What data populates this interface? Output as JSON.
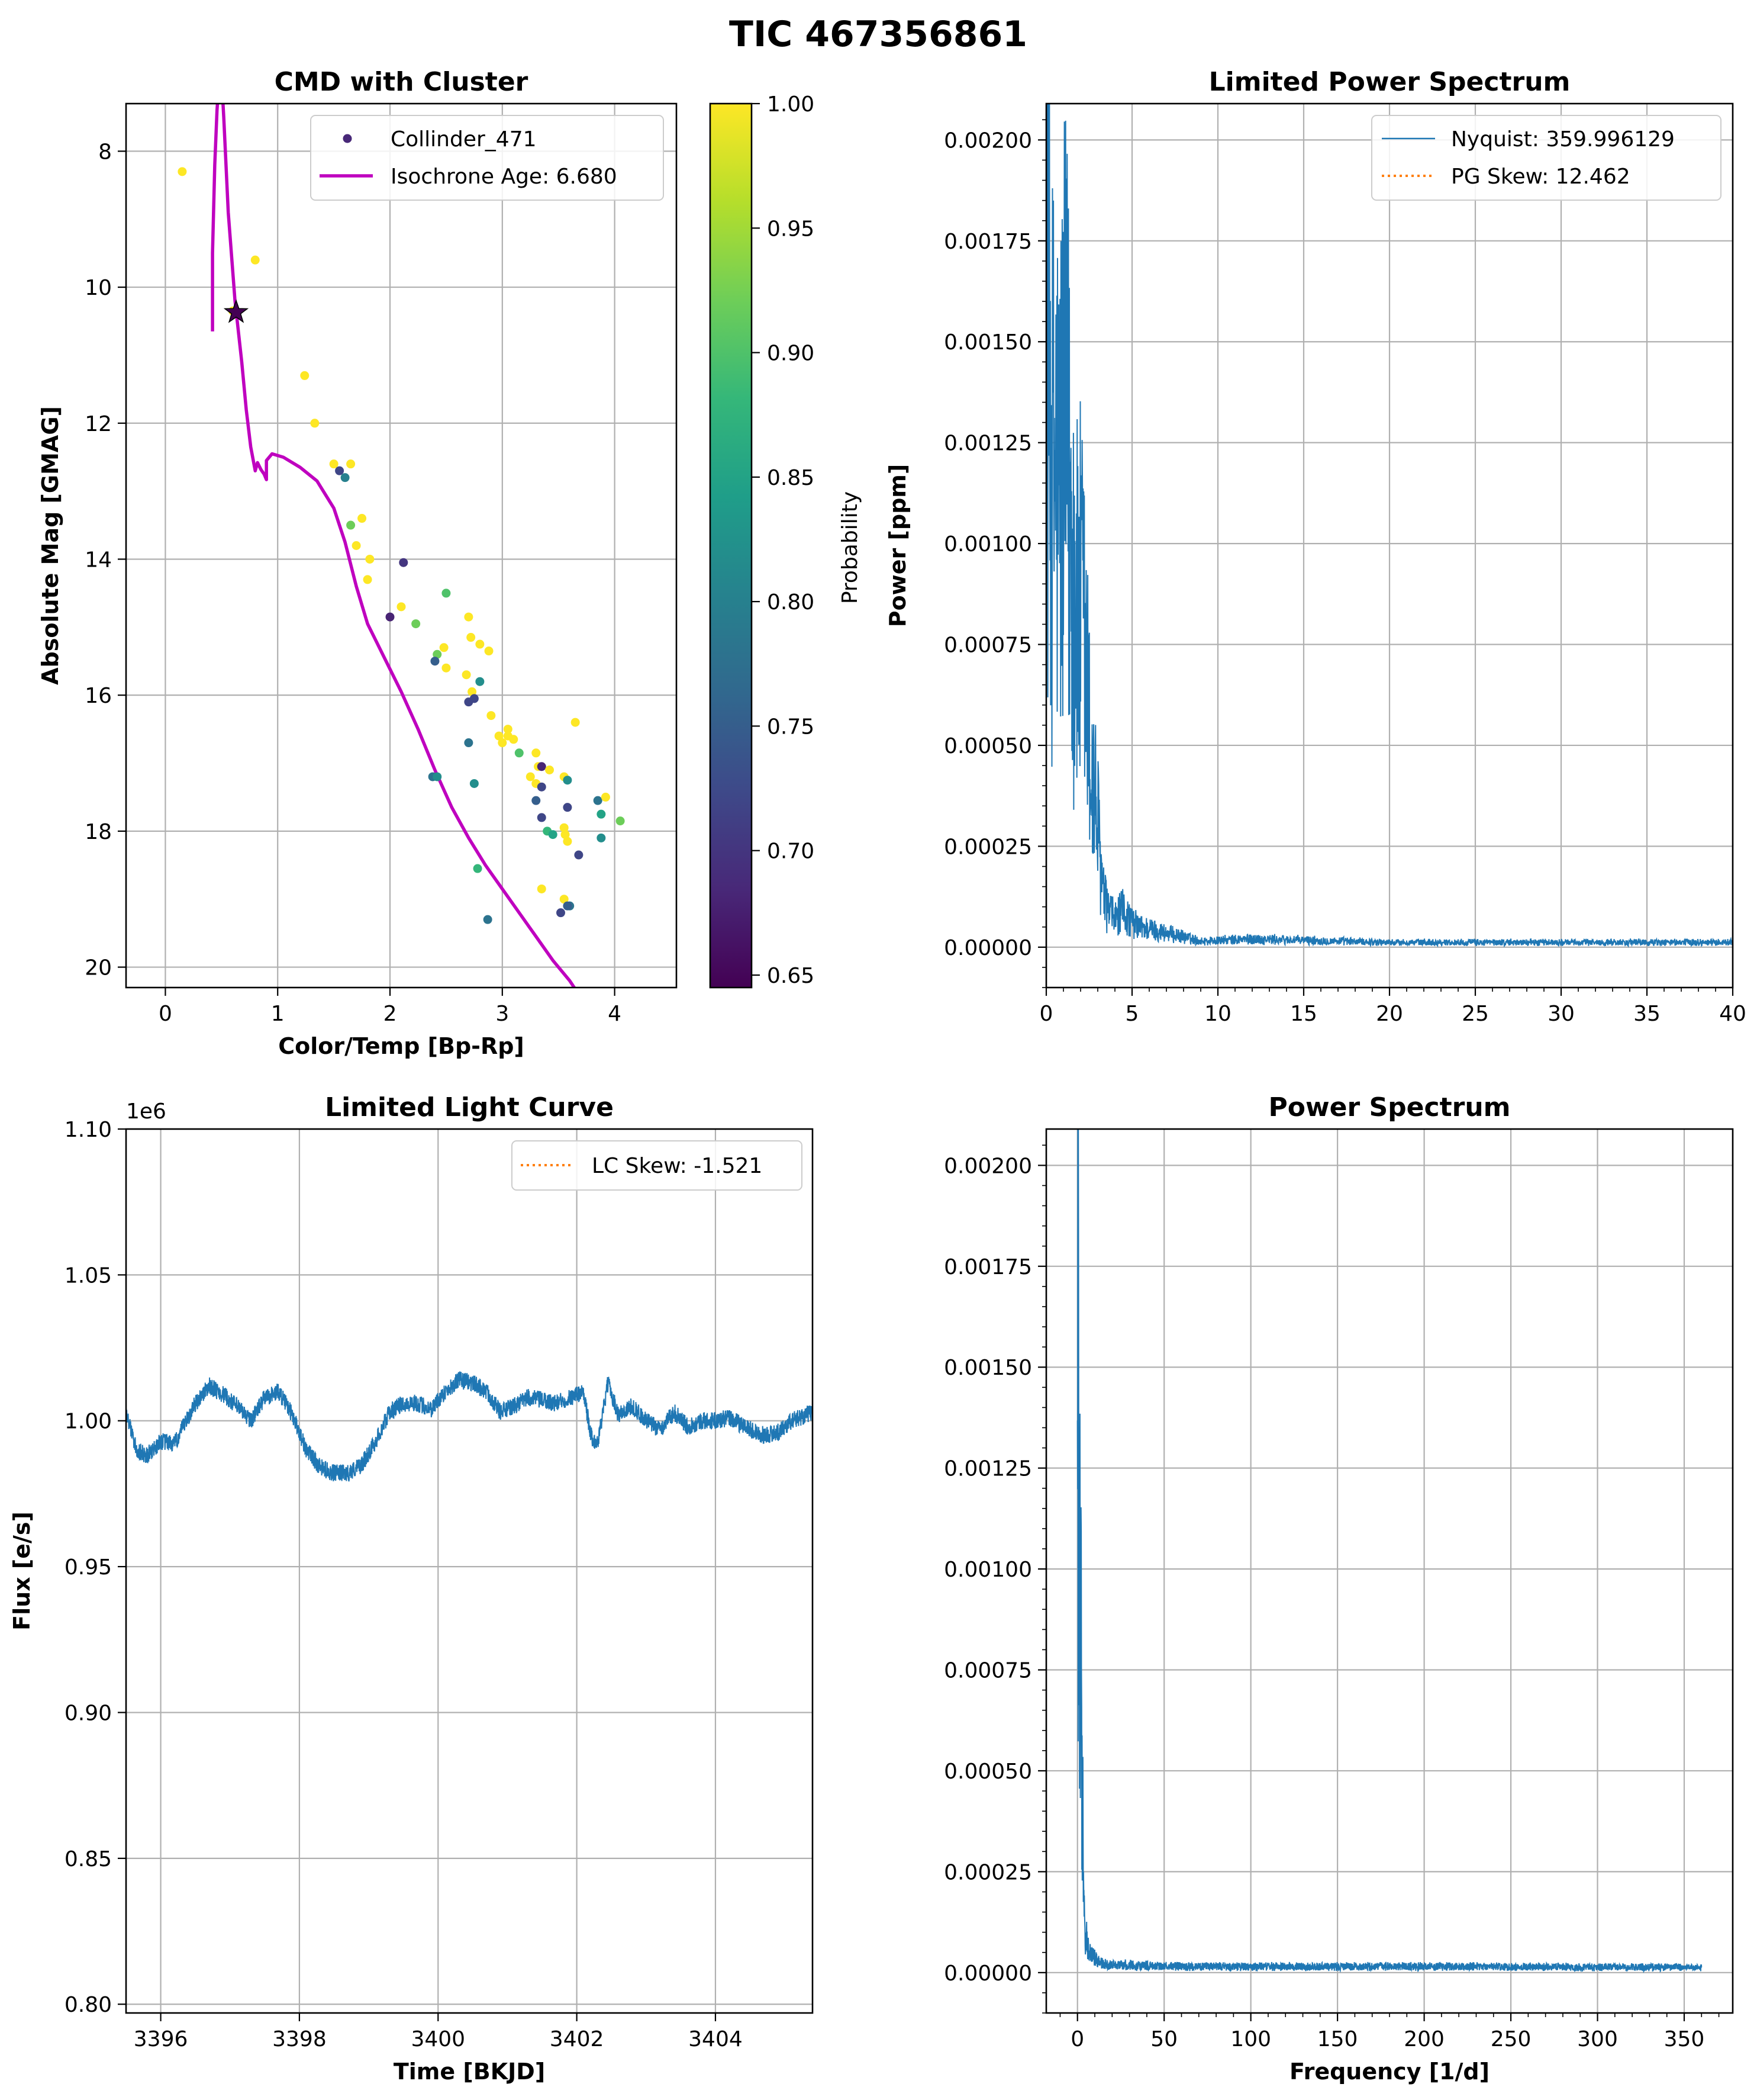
{
  "figure_title": "TIC 467356861",
  "colors": {
    "line_blue": "#1f77b4",
    "skew_orange": "#ff7f0e",
    "isochrone": "#bf00bf",
    "grid": "#b0b0b0",
    "viridis": [
      "#440154",
      "#482878",
      "#3e4989",
      "#31688e",
      "#26828e",
      "#1f9e89",
      "#35b779",
      "#6ece58",
      "#b5de2b",
      "#fde725"
    ]
  },
  "chart_data": [
    {
      "id": "cmd",
      "type": "scatter",
      "title": "CMD with Cluster",
      "xlabel": "Color/Temp [Bp-Rp]",
      "ylabel": "Absolute Mag [GMAG]",
      "xlim": [
        -0.35,
        4.55
      ],
      "ylim": [
        20.3,
        7.3
      ],
      "y_inverted": true,
      "xticks": [
        0,
        1,
        2,
        3,
        4
      ],
      "yticks": [
        8,
        10,
        12,
        14,
        16,
        18,
        20
      ],
      "grid": true,
      "legend": {
        "position": "top-right",
        "entries": [
          "Collinder_471",
          "Isochrone Age: 6.680"
        ]
      },
      "colorbar": {
        "label": "Probability",
        "range": [
          0.645,
          1.0
        ],
        "ticks": [
          "0.65",
          "0.70",
          "0.75",
          "0.80",
          "0.85",
          "0.90",
          "0.95",
          "1.00"
        ],
        "colormap": "viridis"
      },
      "cluster_points": [
        [
          0.15,
          8.3,
          1.0
        ],
        [
          0.8,
          9.6,
          1.0
        ],
        [
          0.6,
          10.35,
          1.0
        ],
        [
          1.24,
          11.3,
          1.0
        ],
        [
          1.33,
          12.0,
          1.0
        ],
        [
          1.5,
          12.6,
          1.0
        ],
        [
          1.55,
          12.7,
          0.72
        ],
        [
          1.6,
          12.8,
          0.8
        ],
        [
          1.65,
          12.6,
          1.0
        ],
        [
          1.75,
          13.4,
          1.0
        ],
        [
          1.65,
          13.5,
          0.92
        ],
        [
          1.7,
          13.8,
          1.0
        ],
        [
          1.82,
          14.0,
          1.0
        ],
        [
          1.8,
          14.3,
          1.0
        ],
        [
          2.12,
          14.05,
          0.7
        ],
        [
          2.5,
          14.5,
          0.9
        ],
        [
          2.0,
          14.85,
          0.68
        ],
        [
          2.1,
          14.7,
          1.0
        ],
        [
          2.23,
          14.95,
          0.92
        ],
        [
          2.7,
          14.85,
          1.0
        ],
        [
          2.72,
          15.15,
          1.0
        ],
        [
          2.42,
          15.4,
          0.92
        ],
        [
          2.48,
          15.3,
          1.0
        ],
        [
          2.5,
          15.6,
          1.0
        ],
        [
          2.4,
          15.5,
          0.75
        ],
        [
          2.8,
          15.25,
          1.0
        ],
        [
          2.88,
          15.35,
          1.0
        ],
        [
          2.68,
          15.7,
          1.0
        ],
        [
          2.73,
          15.95,
          1.0
        ],
        [
          2.75,
          16.05,
          0.72
        ],
        [
          2.7,
          16.1,
          0.72
        ],
        [
          2.8,
          15.8,
          0.82
        ],
        [
          2.9,
          16.3,
          1.0
        ],
        [
          2.97,
          16.6,
          1.0
        ],
        [
          3.0,
          16.7,
          1.0
        ],
        [
          3.05,
          16.6,
          1.0
        ],
        [
          3.1,
          16.65,
          1.0
        ],
        [
          3.15,
          16.85,
          0.9
        ],
        [
          3.05,
          16.5,
          1.0
        ],
        [
          3.65,
          16.4,
          1.0
        ],
        [
          2.7,
          16.7,
          0.78
        ],
        [
          2.38,
          17.2,
          0.78
        ],
        [
          2.42,
          17.2,
          0.82
        ],
        [
          2.75,
          17.3,
          0.82
        ],
        [
          3.25,
          17.2,
          1.0
        ],
        [
          3.3,
          17.3,
          1.0
        ],
        [
          3.32,
          17.05,
          1.0
        ],
        [
          3.35,
          17.05,
          0.68
        ],
        [
          3.35,
          17.35,
          0.72
        ],
        [
          3.3,
          17.55,
          0.75
        ],
        [
          3.3,
          16.85,
          1.0
        ],
        [
          3.42,
          17.1,
          1.0
        ],
        [
          3.55,
          17.2,
          1.0
        ],
        [
          3.58,
          17.25,
          0.82
        ],
        [
          3.58,
          17.65,
          0.72
        ],
        [
          3.55,
          17.95,
          1.0
        ],
        [
          3.56,
          18.05,
          1.0
        ],
        [
          3.58,
          18.15,
          1.0
        ],
        [
          3.4,
          18.0,
          0.88
        ],
        [
          3.45,
          18.05,
          0.85
        ],
        [
          3.35,
          17.8,
          0.72
        ],
        [
          3.85,
          17.55,
          0.78
        ],
        [
          3.88,
          17.75,
          0.85
        ],
        [
          3.92,
          17.5,
          1.0
        ],
        [
          4.05,
          17.85,
          0.92
        ],
        [
          3.88,
          18.1,
          0.82
        ],
        [
          3.68,
          18.35,
          0.72
        ],
        [
          2.78,
          18.55,
          0.88
        ],
        [
          3.35,
          18.85,
          1.0
        ],
        [
          3.55,
          19.0,
          1.0
        ],
        [
          3.6,
          19.1,
          0.78
        ],
        [
          3.52,
          19.2,
          0.72
        ],
        [
          3.58,
          19.1,
          0.75
        ],
        [
          2.87,
          19.3,
          0.78
        ]
      ],
      "target_star": [
        0.63,
        10.37
      ],
      "isochrone": [
        [
          0.42,
          10.65
        ],
        [
          0.42,
          9.5
        ],
        [
          0.44,
          8.2
        ],
        [
          0.46,
          7.4
        ],
        [
          0.48,
          6.9
        ],
        [
          0.5,
          6.9
        ],
        [
          0.52,
          7.5
        ],
        [
          0.56,
          8.9
        ],
        [
          0.62,
          10.2
        ],
        [
          0.68,
          11.1
        ],
        [
          0.72,
          11.8
        ],
        [
          0.76,
          12.35
        ],
        [
          0.8,
          12.7
        ],
        [
          0.82,
          12.58
        ],
        [
          0.85,
          12.68
        ],
        [
          0.88,
          12.75
        ],
        [
          0.9,
          12.83
        ],
        [
          0.9,
          12.55
        ],
        [
          0.95,
          12.45
        ],
        [
          1.05,
          12.5
        ],
        [
          1.2,
          12.65
        ],
        [
          1.35,
          12.85
        ],
        [
          1.5,
          13.25
        ],
        [
          1.6,
          13.75
        ],
        [
          1.7,
          14.4
        ],
        [
          1.8,
          14.95
        ],
        [
          1.95,
          15.45
        ],
        [
          2.1,
          15.95
        ],
        [
          2.25,
          16.5
        ],
        [
          2.4,
          17.1
        ],
        [
          2.55,
          17.65
        ],
        [
          2.7,
          18.1
        ],
        [
          2.85,
          18.5
        ],
        [
          3.0,
          18.85
        ],
        [
          3.15,
          19.2
        ],
        [
          3.3,
          19.55
        ],
        [
          3.45,
          19.9
        ],
        [
          3.6,
          20.2
        ],
        [
          3.72,
          20.5
        ]
      ]
    },
    {
      "id": "limited_ps",
      "type": "line",
      "title": "Limited Power Spectrum",
      "xlabel": "",
      "ylabel": "Power [ppm]",
      "xlim": [
        0,
        40
      ],
      "ylim": [
        -0.0001,
        0.00209
      ],
      "xticks": [
        0,
        5,
        10,
        15,
        20,
        25,
        30,
        35,
        40
      ],
      "yticks": [
        "0.00000",
        "0.00025",
        "0.00050",
        "0.00075",
        "0.00100",
        "0.00125",
        "0.00150",
        "0.00175",
        "0.00200"
      ],
      "grid": true,
      "legend": {
        "position": "top-right",
        "entries": [
          "Nyquist: 359.996129",
          "PG Skew: 12.462"
        ]
      },
      "envelope": [
        [
          0.0,
          0.00175
        ],
        [
          0.15,
          0.0014
        ],
        [
          0.35,
          0.00118
        ],
        [
          0.55,
          0.0012
        ],
        [
          0.75,
          0.0011
        ],
        [
          0.95,
          0.00122
        ],
        [
          1.15,
          0.00126
        ],
        [
          1.35,
          0.00112
        ],
        [
          1.6,
          0.00093
        ],
        [
          1.8,
          0.0008
        ],
        [
          2.0,
          0.00083
        ],
        [
          2.2,
          0.00075
        ],
        [
          2.4,
          0.0006
        ],
        [
          2.6,
          0.00042
        ],
        [
          2.8,
          0.00038
        ],
        [
          3.0,
          0.0003
        ],
        [
          3.3,
          0.00013
        ],
        [
          3.6,
          9e-05
        ],
        [
          4.0,
          7e-05
        ],
        [
          4.5,
          9e-05
        ],
        [
          5.0,
          6e-05
        ],
        [
          5.5,
          5e-05
        ],
        [
          6.5,
          4e-05
        ],
        [
          7.5,
          3e-05
        ],
        [
          9.0,
          1.5e-05
        ],
        [
          12.0,
          2e-05
        ],
        [
          20.0,
          1.2e-05
        ],
        [
          40.0,
          1.2e-05
        ]
      ]
    },
    {
      "id": "limited_lc",
      "type": "line",
      "title": "Limited Light Curve",
      "xlabel": "Time [BKJD]",
      "ylabel": "Flux [e/s]",
      "xlim": [
        3395.5,
        3405.4
      ],
      "ylim": [
        0.797,
        1.1
      ],
      "y_multiplier": "1e6",
      "xticks": [
        3396,
        3398,
        3400,
        3402,
        3404
      ],
      "yticks": [
        "0.80",
        "0.85",
        "0.90",
        "0.95",
        "1.00",
        "1.05",
        "1.10"
      ],
      "grid": true,
      "legend": {
        "position": "top-right",
        "entries": [
          "LC Skew: -1.521"
        ]
      },
      "envelope": [
        [
          3395.5,
          1.003
        ],
        [
          3395.65,
          0.99
        ],
        [
          3395.8,
          0.988
        ],
        [
          3396.0,
          0.993
        ],
        [
          3396.2,
          0.992
        ],
        [
          3396.5,
          1.006
        ],
        [
          3396.7,
          1.012
        ],
        [
          3396.9,
          1.009
        ],
        [
          3397.1,
          1.005
        ],
        [
          3397.3,
          1.0
        ],
        [
          3397.5,
          1.008
        ],
        [
          3397.7,
          1.01
        ],
        [
          3397.9,
          1.002
        ],
        [
          3398.1,
          0.99
        ],
        [
          3398.3,
          0.984
        ],
        [
          3398.5,
          0.982
        ],
        [
          3398.7,
          0.982
        ],
        [
          3398.9,
          0.985
        ],
        [
          3399.1,
          0.993
        ],
        [
          3399.3,
          1.003
        ],
        [
          3399.5,
          1.006
        ],
        [
          3399.7,
          1.006
        ],
        [
          3399.9,
          1.004
        ],
        [
          3400.1,
          1.01
        ],
        [
          3400.3,
          1.014
        ],
        [
          3400.5,
          1.013
        ],
        [
          3400.7,
          1.01
        ],
        [
          3400.9,
          1.003
        ],
        [
          3401.1,
          1.005
        ],
        [
          3401.3,
          1.008
        ],
        [
          3401.5,
          1.007
        ],
        [
          3401.7,
          1.006
        ],
        [
          3401.9,
          1.008
        ],
        [
          3402.1,
          1.01
        ],
        [
          3402.2,
          0.995
        ],
        [
          3402.3,
          0.992
        ],
        [
          3402.45,
          1.013
        ],
        [
          3402.6,
          1.002
        ],
        [
          3402.8,
          1.005
        ],
        [
          3403.0,
          1.0
        ],
        [
          3403.2,
          0.997
        ],
        [
          3403.4,
          1.003
        ],
        [
          3403.6,
          0.998
        ],
        [
          3403.8,
          1.0
        ],
        [
          3404.0,
          1.0
        ],
        [
          3404.2,
          1.001
        ],
        [
          3404.5,
          0.997
        ],
        [
          3404.7,
          0.995
        ],
        [
          3404.9,
          0.996
        ],
        [
          3405.1,
          1.0
        ],
        [
          3405.4,
          1.003
        ]
      ]
    },
    {
      "id": "full_ps",
      "type": "line",
      "title": "Power Spectrum",
      "xlabel": "Frequency [1/d]",
      "ylabel": "",
      "xlim": [
        -18,
        378
      ],
      "ylim": [
        -0.0001,
        0.00209
      ],
      "xticks": [
        0,
        50,
        100,
        150,
        200,
        250,
        300,
        350
      ],
      "yticks": [
        "0.00000",
        "0.00025",
        "0.00050",
        "0.00075",
        "0.00100",
        "0.00125",
        "0.00150",
        "0.00175",
        "0.00200"
      ],
      "grid": true,
      "envelope": [
        [
          0.0,
          0.002
        ],
        [
          0.5,
          0.0013
        ],
        [
          1.0,
          0.0012
        ],
        [
          1.5,
          0.0008
        ],
        [
          2.0,
          0.00082
        ],
        [
          2.5,
          0.0006
        ],
        [
          3.0,
          0.0004
        ],
        [
          3.5,
          0.00015
        ],
        [
          5.0,
          8e-05
        ],
        [
          8.0,
          4e-05
        ],
        [
          15.0,
          2e-05
        ],
        [
          60.0,
          1.5e-05
        ],
        [
          200.0,
          1.5e-05
        ],
        [
          360.0,
          1.3e-05
        ]
      ]
    }
  ]
}
